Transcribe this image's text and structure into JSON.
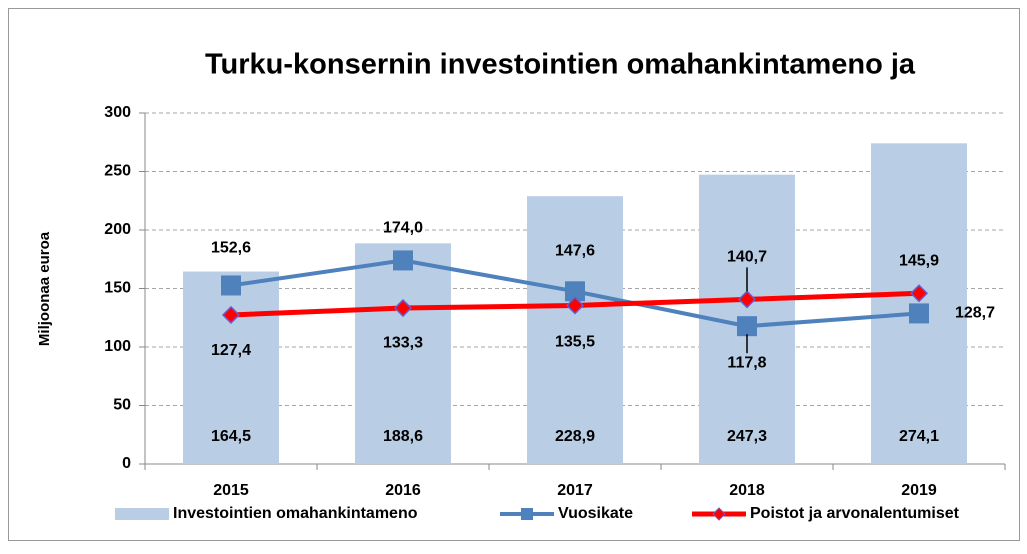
{
  "chart_data": {
    "type": "bar",
    "title": "Turku-konsernin investointien omahankintameno ja",
    "y_label": "Miljoonaa euroa",
    "categories": [
      "2015",
      "2016",
      "2017",
      "2018",
      "2019"
    ],
    "series": [
      {
        "name": "Investointien omahankintameno",
        "type": "bar",
        "color": "#b9cde5",
        "values": [
          164.5,
          188.6,
          228.9,
          247.3,
          274.1
        ],
        "value_labels": [
          "164,5",
          "188,6",
          "228,9",
          "247,3",
          "274,1"
        ]
      },
      {
        "name": "Vuosikate",
        "type": "line",
        "color": "#4f81bd",
        "values": [
          152.6,
          174.0,
          147.6,
          117.8,
          128.7
        ],
        "value_labels": [
          "152,6",
          "174,0",
          "147,6",
          "117,8",
          "128,7"
        ]
      },
      {
        "name": "Poistot ja arvonalentumiset",
        "type": "line",
        "color": "#ff0000",
        "values": [
          127.4,
          133.3,
          135.5,
          140.7,
          145.9
        ],
        "value_labels": [
          "127,4",
          "133,3",
          "135,5",
          "140,7",
          "145,9"
        ]
      }
    ],
    "ylim": [
      0,
      300
    ],
    "yticks": [
      0,
      50,
      100,
      150,
      200,
      250,
      300
    ],
    "grid": true
  }
}
